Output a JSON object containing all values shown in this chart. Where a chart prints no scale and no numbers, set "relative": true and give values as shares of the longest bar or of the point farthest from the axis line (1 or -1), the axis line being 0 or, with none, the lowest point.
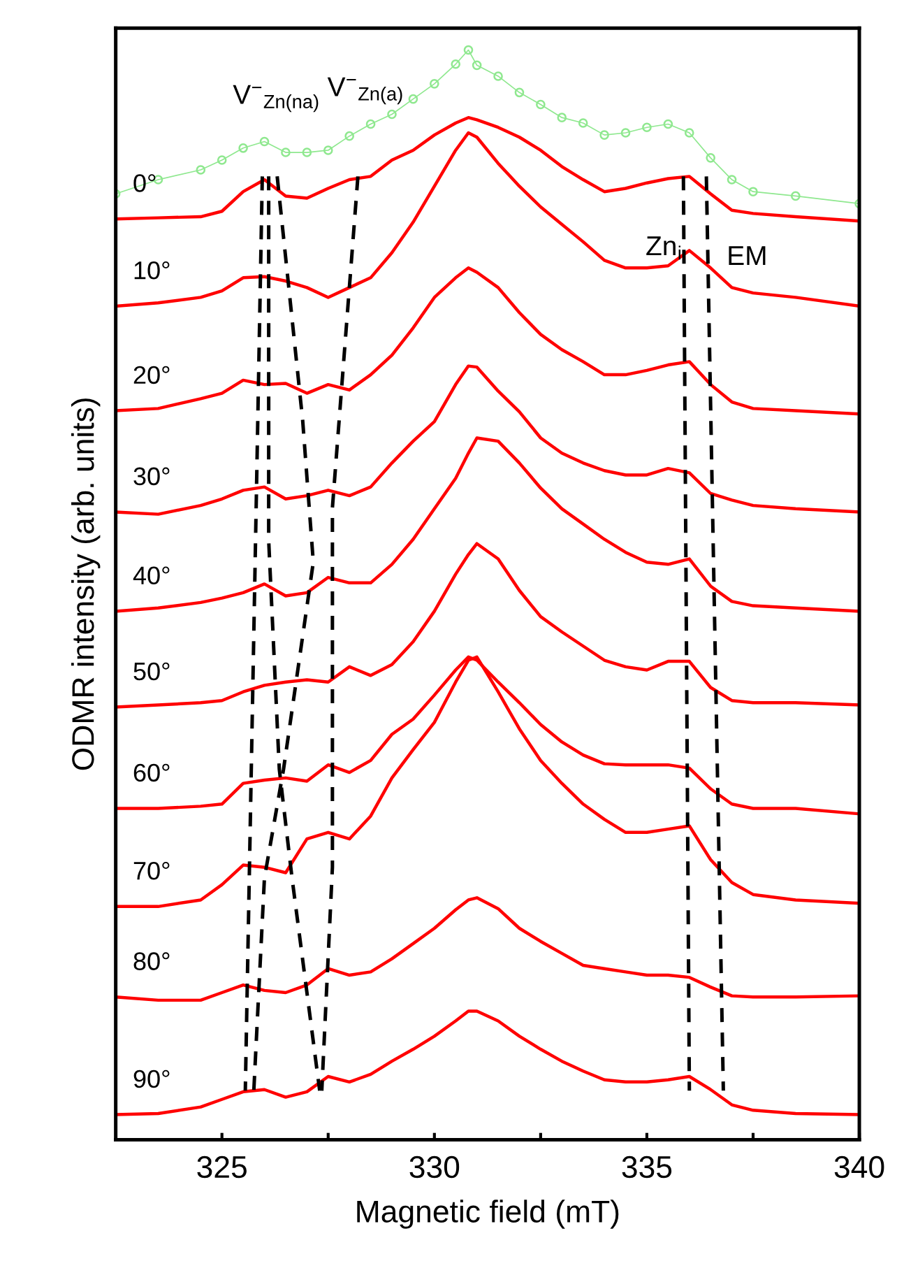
{
  "chart_data": {
    "type": "line",
    "relative": true,
    "xlabel": "Magnetic field (mT)",
    "ylabel": "ODMR intensity (arb. units)",
    "xlim": [
      322.5,
      340
    ],
    "xticks": [
      325,
      {
        "value": 327.5,
        "label": null
      },
      330,
      {
        "value": 332.5,
        "label": null
      },
      335,
      {
        "value": 337.5,
        "label": null
      },
      340
    ],
    "grid": false,
    "legend": false,
    "x": [
      322.5,
      323.5,
      324.5,
      325.0,
      325.5,
      326.0,
      326.5,
      327.0,
      327.5,
      328.0,
      328.5,
      329.0,
      329.5,
      330.0,
      330.5,
      330.8,
      331.0,
      331.5,
      332.0,
      332.5,
      333.0,
      333.5,
      334.0,
      334.5,
      335.0,
      335.5,
      336.0,
      336.5,
      337.0,
      337.5,
      338.5,
      340.0
    ],
    "series": [
      {
        "color": "#8fe88f",
        "marker": "circle",
        "values": [
          0.868,
          0.881,
          0.89,
          0.899,
          0.91,
          0.916,
          0.906,
          0.906,
          0.908,
          0.921,
          0.932,
          0.941,
          0.955,
          0.969,
          0.987,
          1.0,
          0.986,
          0.976,
          0.961,
          0.95,
          0.938,
          0.933,
          0.922,
          0.924,
          0.929,
          0.932,
          0.924,
          0.901,
          0.881,
          0.87,
          0.866,
          0.859
        ]
      },
      {
        "name": "0°",
        "color": "#ff0000",
        "values": [
          0.845,
          0.846,
          0.847,
          0.852,
          0.87,
          0.881,
          0.866,
          0.864,
          0.873,
          0.881,
          0.884,
          0.899,
          0.908,
          0.922,
          0.933,
          0.938,
          0.936,
          0.929,
          0.92,
          0.908,
          0.893,
          0.881,
          0.87,
          0.873,
          0.878,
          0.882,
          0.884,
          0.868,
          0.853,
          0.85,
          0.847,
          0.843
        ]
      },
      {
        "name": "10°",
        "color": "#ff0000",
        "values": [
          0.765,
          0.768,
          0.773,
          0.779,
          0.791,
          0.792,
          0.788,
          0.782,
          0.773,
          0.782,
          0.791,
          0.814,
          0.842,
          0.875,
          0.908,
          0.924,
          0.92,
          0.896,
          0.875,
          0.856,
          0.84,
          0.824,
          0.807,
          0.8,
          0.8,
          0.802,
          0.816,
          0.8,
          0.782,
          0.777,
          0.773,
          0.765
        ]
      },
      {
        "name": "20°",
        "color": "#ff0000",
        "values": [
          0.669,
          0.671,
          0.68,
          0.685,
          0.697,
          0.693,
          0.694,
          0.685,
          0.693,
          0.688,
          0.702,
          0.72,
          0.745,
          0.773,
          0.791,
          0.8,
          0.796,
          0.782,
          0.759,
          0.739,
          0.725,
          0.714,
          0.702,
          0.702,
          0.706,
          0.711,
          0.714,
          0.693,
          0.677,
          0.671,
          0.669,
          0.666
        ]
      },
      {
        "name": "30°",
        "color": "#ff0000",
        "values": [
          0.576,
          0.574,
          0.582,
          0.588,
          0.596,
          0.599,
          0.588,
          0.591,
          0.596,
          0.591,
          0.599,
          0.621,
          0.641,
          0.659,
          0.693,
          0.71,
          0.709,
          0.687,
          0.668,
          0.644,
          0.63,
          0.621,
          0.614,
          0.61,
          0.61,
          0.616,
          0.612,
          0.593,
          0.587,
          0.582,
          0.579,
          0.576
        ]
      },
      {
        "name": "40°",
        "color": "#ff0000",
        "values": [
          0.485,
          0.488,
          0.493,
          0.497,
          0.502,
          0.51,
          0.499,
          0.502,
          0.516,
          0.511,
          0.511,
          0.528,
          0.551,
          0.579,
          0.607,
          0.63,
          0.644,
          0.641,
          0.621,
          0.598,
          0.579,
          0.565,
          0.551,
          0.539,
          0.53,
          0.528,
          0.533,
          0.508,
          0.494,
          0.49,
          0.488,
          0.485
        ]
      },
      {
        "name": "50°",
        "color": "#ff0000",
        "values": [
          0.397,
          0.399,
          0.401,
          0.403,
          0.411,
          0.417,
          0.42,
          0.422,
          0.42,
          0.434,
          0.426,
          0.436,
          0.457,
          0.485,
          0.519,
          0.537,
          0.547,
          0.533,
          0.504,
          0.48,
          0.466,
          0.453,
          0.44,
          0.434,
          0.431,
          0.439,
          0.439,
          0.415,
          0.403,
          0.401,
          0.401,
          0.399
        ]
      },
      {
        "name": "60°",
        "color": "#ff0000",
        "values": [
          0.304,
          0.304,
          0.306,
          0.308,
          0.327,
          0.33,
          0.332,
          0.329,
          0.344,
          0.337,
          0.348,
          0.372,
          0.386,
          0.408,
          0.431,
          0.443,
          0.44,
          0.42,
          0.401,
          0.381,
          0.365,
          0.353,
          0.345,
          0.344,
          0.344,
          0.344,
          0.341,
          0.322,
          0.308,
          0.304,
          0.304,
          0.299
        ]
      },
      {
        "name": "70°",
        "color": "#ff0000",
        "values": [
          0.214,
          0.214,
          0.22,
          0.234,
          0.252,
          0.25,
          0.245,
          0.276,
          0.282,
          0.276,
          0.297,
          0.332,
          0.358,
          0.383,
          0.42,
          0.44,
          0.443,
          0.411,
          0.377,
          0.348,
          0.327,
          0.308,
          0.294,
          0.282,
          0.282,
          0.285,
          0.288,
          0.257,
          0.236,
          0.225,
          0.22,
          0.217
        ]
      },
      {
        "name": "80°",
        "color": "#ff0000",
        "values": [
          0.131,
          0.128,
          0.128,
          0.135,
          0.142,
          0.137,
          0.135,
          0.142,
          0.157,
          0.151,
          0.154,
          0.166,
          0.18,
          0.194,
          0.211,
          0.22,
          0.222,
          0.212,
          0.194,
          0.182,
          0.171,
          0.16,
          0.157,
          0.154,
          0.151,
          0.151,
          0.149,
          0.14,
          0.132,
          0.131,
          0.131,
          0.132
        ]
      },
      {
        "name": "90°",
        "color": "#ff0000",
        "values": [
          0.023,
          0.024,
          0.03,
          0.037,
          0.044,
          0.046,
          0.039,
          0.044,
          0.058,
          0.053,
          0.06,
          0.072,
          0.083,
          0.095,
          0.109,
          0.118,
          0.118,
          0.109,
          0.095,
          0.083,
          0.072,
          0.063,
          0.055,
          0.053,
          0.053,
          0.055,
          0.058,
          0.046,
          0.032,
          0.027,
          0.024,
          0.023
        ]
      },
      {
        "color": "#000000",
        "line_style": "dashed",
        "x": [
          325.95,
          325.55
        ],
        "values": [
          0.884,
          0.045
        ]
      },
      {
        "color": "#000000",
        "line_style": "dashed",
        "x": [
          326.1,
          326.1,
          326.35,
          326.65,
          327.3
        ],
        "values": [
          0.884,
          0.55,
          0.34,
          0.24,
          0.045
        ]
      },
      {
        "color": "#000000",
        "line_style": "dashed",
        "x": [
          326.3,
          326.9,
          327.15,
          326.45,
          326.0,
          325.75
        ],
        "values": [
          0.884,
          0.66,
          0.53,
          0.34,
          0.24,
          0.045
        ]
      },
      {
        "color": "#000000",
        "line_style": "dashed",
        "x": [
          328.2,
          327.6,
          327.6,
          327.35
        ],
        "values": [
          0.884,
          0.58,
          0.25,
          0.045
        ]
      },
      {
        "color": "#000000",
        "line_style": "dashed",
        "x": [
          335.86,
          336.0
        ],
        "values": [
          0.884,
          0.045
        ]
      },
      {
        "color": "#000000",
        "line_style": "dashed",
        "x": [
          336.4,
          336.8
        ],
        "values": [
          0.884,
          0.045
        ]
      }
    ],
    "annotations": [
      {
        "text": "V$^{−}$$_{Zn(na)}$",
        "x": 326.1,
        "y": 0.884
      },
      {
        "text": "V$^{−}$$_{Zn(a)}$",
        "x": 328.2,
        "y": 0.884
      },
      {
        "text": "Zn$_{i}$",
        "x": 335.86,
        "y": 0.884
      },
      {
        "text": "EM",
        "x": 336.4,
        "y": 0.884
      }
    ]
  }
}
